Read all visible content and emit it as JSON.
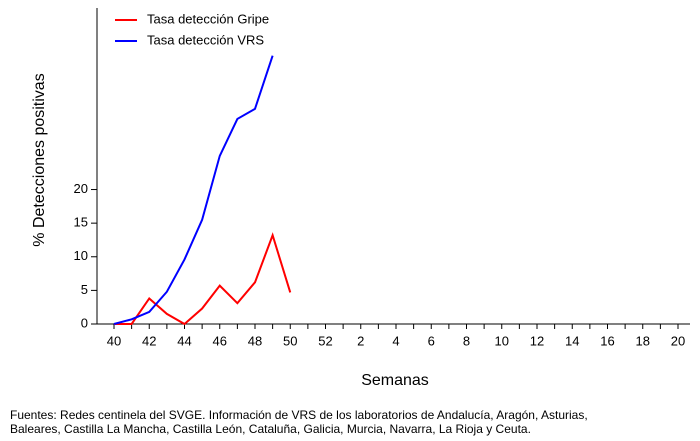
{
  "chart_data": {
    "type": "line",
    "x_label": "Semanas",
    "y_label": "% Detecciones positivas",
    "categories": [
      "40",
      null,
      "42",
      null,
      "44",
      null,
      "46",
      null,
      "48",
      null,
      "50",
      null,
      "52",
      null,
      "2",
      null,
      "4",
      null,
      "6",
      null,
      "8",
      null,
      "10",
      null,
      "12",
      null,
      "14",
      null,
      "16",
      null,
      "18",
      null,
      "20"
    ],
    "series": [
      {
        "name": "Tasa detección Gripe",
        "color": "#ff0000",
        "values": [
          0,
          0,
          3.8,
          1.5,
          0,
          2.3,
          5.7,
          3.1,
          6.2,
          13.2,
          4.7,
          null,
          null,
          null,
          null,
          null,
          null,
          null,
          null,
          null,
          null,
          null,
          null,
          null,
          null,
          null,
          null,
          null,
          null,
          null,
          null,
          null,
          null
        ]
      },
      {
        "name": "Tasa detección VRS",
        "color": "#0000ff",
        "values": [
          0,
          0.7,
          1.8,
          4.8,
          9.6,
          15.5,
          25,
          30.5,
          32,
          39.9,
          null,
          null,
          null,
          null,
          null,
          null,
          null,
          null,
          null,
          null,
          null,
          null,
          null,
          null,
          null,
          null,
          null,
          null,
          null,
          null,
          null,
          null,
          null
        ]
      }
    ],
    "ylim": [
      0,
      47
    ],
    "yticks": [
      0,
      5,
      10,
      15,
      20
    ],
    "legend": "top-left",
    "source": [
      "Fuentes: Redes centinela del SVGE. Información de VRS de los laboratorios de Andalucía, Aragón, Asturias,",
      "Baleares, Castilla La Mancha, Castilla León, Cataluña, Galicia, Murcia, Navarra, La Rioja y Ceuta."
    ]
  }
}
